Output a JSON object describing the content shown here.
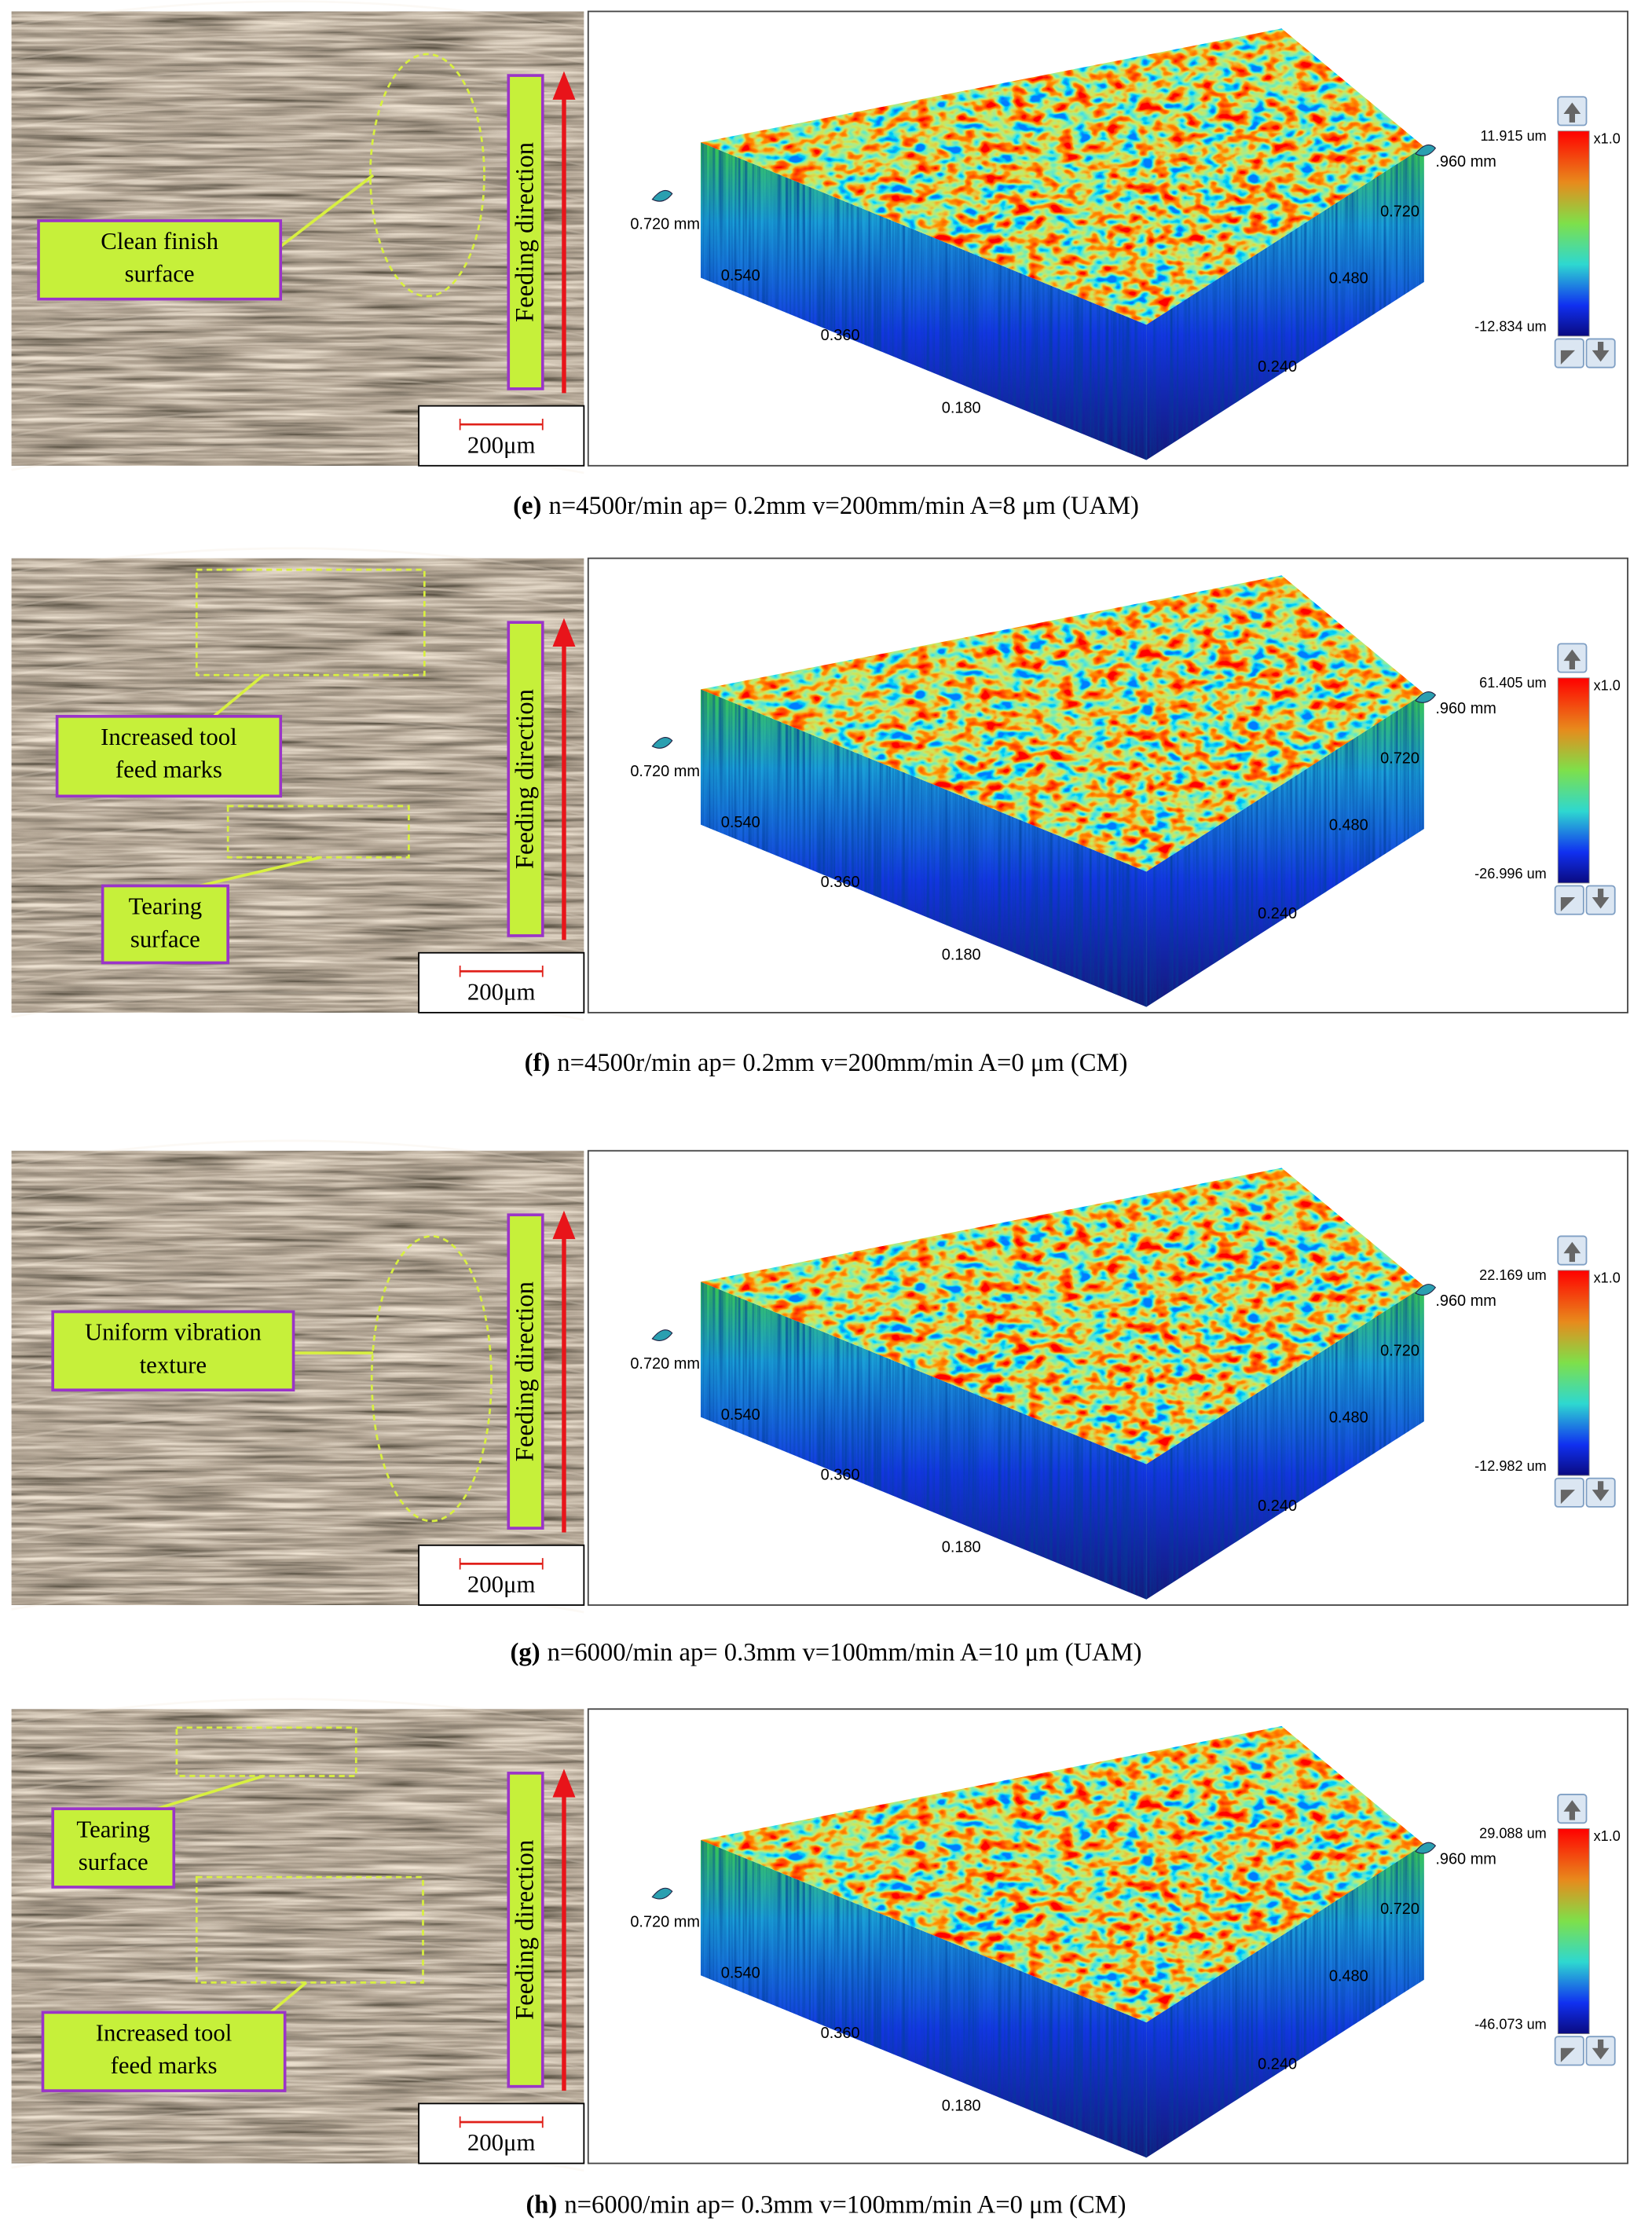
{
  "panels": [
    {
      "label": "(e)",
      "caption": "n=4500r/min ap= 0.2mm v=200mm/min A=8 μm (UAM)",
      "annotations": [
        {
          "lines": [
            "Clean finish",
            "surface"
          ]
        }
      ],
      "feeding_direction": "Feeding direction",
      "scale_bar": "200μm",
      "axis_left": {
        "corner": "0.720 mm",
        "ticks": [
          "0.540",
          "0.360",
          "0.180"
        ]
      },
      "axis_right": {
        "corner": ".960 mm",
        "ticks": [
          "0.720",
          "0.480",
          "0.240"
        ]
      },
      "colorbar": {
        "max": "11.915 um",
        "min": "-12.834 um",
        "zoom": "x1.0"
      }
    },
    {
      "label": "(f)",
      "caption": "n=4500r/min ap= 0.2mm v=200mm/min A=0 μm (CM)",
      "annotations": [
        {
          "lines": [
            "Increased tool",
            "feed marks"
          ]
        },
        {
          "lines": [
            "Tearing",
            "surface"
          ]
        }
      ],
      "feeding_direction": "Feeding direction",
      "scale_bar": "200μm",
      "axis_left": {
        "corner": "0.720 mm",
        "ticks": [
          "0.540",
          "0.360",
          "0.180"
        ]
      },
      "axis_right": {
        "corner": ".960 mm",
        "ticks": [
          "0.720",
          "0.480",
          "0.240"
        ]
      },
      "colorbar": {
        "max": "61.405 um",
        "min": "-26.996 um",
        "zoom": "x1.0"
      }
    },
    {
      "label": "(g)",
      "caption": "n=6000/min ap= 0.3mm v=100mm/min A=10 μm (UAM)",
      "annotations": [
        {
          "lines": [
            "Uniform vibration",
            "texture"
          ]
        }
      ],
      "feeding_direction": "Feeding direction",
      "scale_bar": "200μm",
      "axis_left": {
        "corner": "0.720 mm",
        "ticks": [
          "0.540",
          "0.360",
          "0.180"
        ]
      },
      "axis_right": {
        "corner": ".960 mm",
        "ticks": [
          "0.720",
          "0.480",
          "0.240"
        ]
      },
      "colorbar": {
        "max": "22.169 um",
        "min": "-12.982 um",
        "zoom": "x1.0"
      }
    },
    {
      "label": "(h)",
      "caption": "n=6000/min ap= 0.3mm v=100mm/min A=0 μm (CM)",
      "annotations": [
        {
          "lines": [
            "Tearing",
            "surface"
          ]
        },
        {
          "lines": [
            "Increased tool",
            "feed marks"
          ]
        }
      ],
      "feeding_direction": "Feeding direction",
      "scale_bar": "200μm",
      "axis_left": {
        "corner": "0.720 mm",
        "ticks": [
          "0.540",
          "0.360",
          "0.180"
        ]
      },
      "axis_right": {
        "corner": ".960 mm",
        "ticks": [
          "0.720",
          "0.480",
          "0.240"
        ]
      },
      "colorbar": {
        "max": "29.088 um",
        "min": "-46.073 um",
        "zoom": "x1.0"
      }
    }
  ]
}
